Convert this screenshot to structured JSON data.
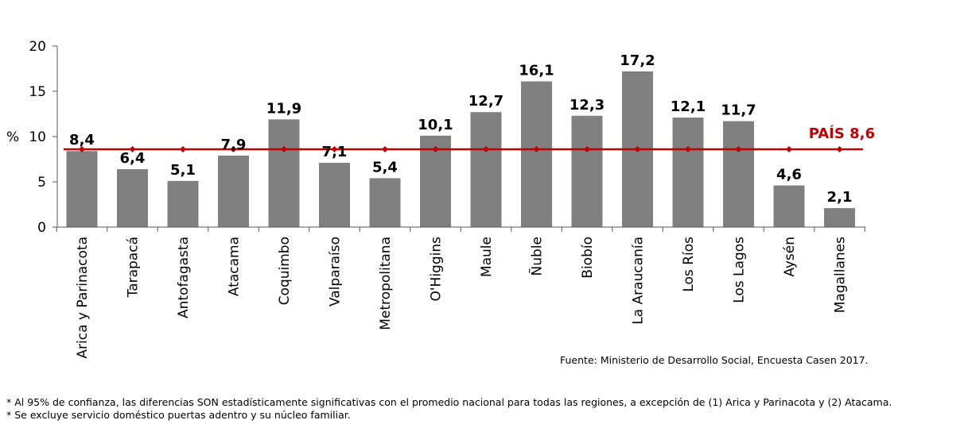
{
  "chart_data": {
    "type": "bar",
    "ylabel": "%",
    "ylim": [
      0,
      20
    ],
    "yticks": [
      "0",
      "5",
      "10",
      "15",
      "20"
    ],
    "categories": [
      "Arica y Parinacota",
      "Tarapacá",
      "Antofagasta",
      "Atacama",
      "Coquimbo",
      "Valparaíso",
      "Metropolitana",
      "O'Higgins",
      "Maule",
      "Ñuble",
      "Biobío",
      "La Araucanía",
      "Los Ríos",
      "Los Lagos",
      "Aysén",
      "Magallanes"
    ],
    "values": [
      8.4,
      6.4,
      5.1,
      7.9,
      11.9,
      7.1,
      5.4,
      10.1,
      12.7,
      16.1,
      12.3,
      17.2,
      12.1,
      11.7,
      4.6,
      2.1
    ],
    "value_labels": [
      "8,4",
      "6,4",
      "5,1",
      "7,9",
      "11,9",
      "7,1",
      "5,4",
      "10,1",
      "12,7",
      "16,1",
      "12,3",
      "17,2",
      "12,1",
      "11,7",
      "4,6",
      "2,1"
    ],
    "reference_line": {
      "label": "PAÍS 8,6",
      "value": 8.6,
      "color": "#c00000"
    },
    "bar_color": "#808080",
    "grid": false,
    "legend": "none"
  },
  "source": "Fuente: Ministerio de Desarrollo Social, Encuesta Casen 2017.",
  "notes": [
    "* Al 95% de confianza, las diferencias SON estadísticamente significativas con el promedio nacional para todas las regiones, a excepción de (1) Arica y Parinacota y (2) Atacama.",
    "* Se excluye servicio doméstico puertas adentro y su núcleo familiar."
  ]
}
